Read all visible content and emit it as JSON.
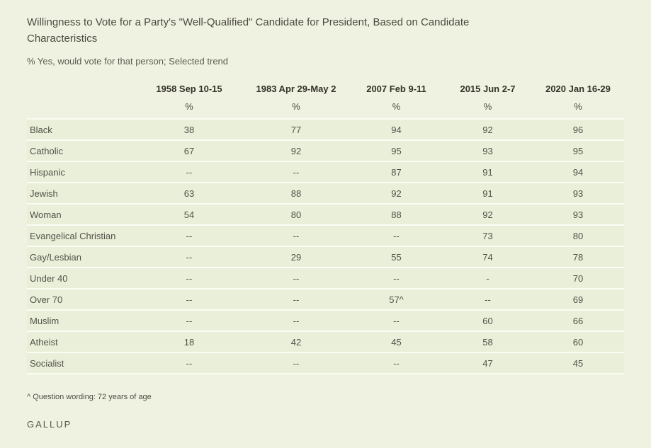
{
  "title": "Willingness to Vote for a Party's \"Well-Qualified\" Candidate for President, Based on Candidate Characteristics",
  "subtitle": "% Yes, would vote for that person; Selected trend",
  "chart_data": {
    "type": "table",
    "title": "Willingness to Vote for a Party's \"Well-Qualified\" Candidate for President, Based on Candidate Characteristics",
    "subtitle": "% Yes, would vote for that person; Selected trend",
    "unit": "%",
    "columns": [
      "1958 Sep 10-15",
      "1983 Apr 29-May 2",
      "2007 Feb 9-11",
      "2015 Jun 2-7",
      "2020 Jan 16-29"
    ],
    "units_row": [
      "%",
      "%",
      "%",
      "%",
      "%"
    ],
    "categories": [
      "Black",
      "Catholic",
      "Hispanic",
      "Jewish",
      "Woman",
      "Evangelical Christian",
      "Gay/Lesbian",
      "Under 40",
      "Over 70",
      "Muslim",
      "Atheist",
      "Socialist"
    ],
    "rows": [
      {
        "label": "Black",
        "values": [
          "38",
          "77",
          "94",
          "92",
          "96"
        ]
      },
      {
        "label": "Catholic",
        "values": [
          "67",
          "92",
          "95",
          "93",
          "95"
        ]
      },
      {
        "label": "Hispanic",
        "values": [
          "--",
          "--",
          "87",
          "91",
          "94"
        ]
      },
      {
        "label": "Jewish",
        "values": [
          "63",
          "88",
          "92",
          "91",
          "93"
        ]
      },
      {
        "label": "Woman",
        "values": [
          "54",
          "80",
          "88",
          "92",
          "93"
        ]
      },
      {
        "label": "Evangelical Christian",
        "values": [
          "--",
          "--",
          "--",
          "73",
          "80"
        ]
      },
      {
        "label": "Gay/Lesbian",
        "values": [
          "--",
          "29",
          "55",
          "74",
          "78"
        ]
      },
      {
        "label": "Under 40",
        "values": [
          "--",
          "--",
          "--",
          "-",
          "70"
        ]
      },
      {
        "label": "Over 70",
        "values": [
          "--",
          "--",
          "57^",
          "--",
          "69"
        ]
      },
      {
        "label": "Muslim",
        "values": [
          "--",
          "--",
          "--",
          "60",
          "66"
        ]
      },
      {
        "label": "Atheist",
        "values": [
          "18",
          "42",
          "45",
          "58",
          "60"
        ]
      },
      {
        "label": "Socialist",
        "values": [
          "--",
          "--",
          "--",
          "47",
          "45"
        ]
      }
    ],
    "series": [
      {
        "name": "1958 Sep 10-15",
        "values": [
          38,
          67,
          null,
          63,
          54,
          null,
          null,
          null,
          null,
          null,
          18,
          null
        ]
      },
      {
        "name": "1983 Apr 29-May 2",
        "values": [
          77,
          92,
          null,
          88,
          80,
          null,
          29,
          null,
          null,
          null,
          42,
          null
        ]
      },
      {
        "name": "2007 Feb 9-11",
        "values": [
          94,
          95,
          87,
          92,
          88,
          null,
          55,
          null,
          57,
          null,
          45,
          null
        ]
      },
      {
        "name": "2015 Jun 2-7",
        "values": [
          92,
          93,
          91,
          91,
          92,
          73,
          74,
          null,
          null,
          60,
          58,
          47
        ]
      },
      {
        "name": "2020 Jan 16-29",
        "values": [
          96,
          95,
          94,
          93,
          93,
          80,
          78,
          70,
          69,
          66,
          60,
          45
        ]
      }
    ],
    "footnote": "^ Question wording: 72 years of age"
  },
  "footnote": "^ Question wording: 72 years of age",
  "brand": "GALLUP",
  "colors": {
    "page_background": "#f0f2e1",
    "row_background": "#e9efd8",
    "row_separator": "#fbfcf4",
    "heading_text": "#343228",
    "body_text": "#53524b"
  }
}
